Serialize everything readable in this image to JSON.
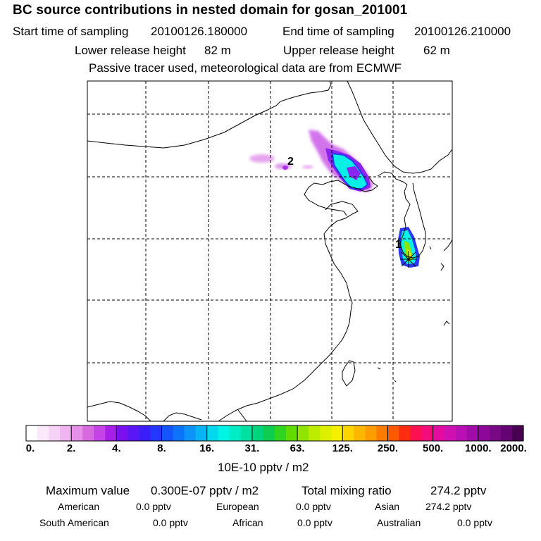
{
  "title": "BC  source contributions in nested domain for gosan_201001",
  "header": {
    "start_label": "Start time of sampling",
    "start_value": "20100126.180000",
    "end_label": "End time of sampling",
    "end_value": "20100126.210000",
    "lower_label": "Lower release height",
    "lower_value": "82 m",
    "upper_label": "Upper release height",
    "upper_value": "62 m",
    "info": "Passive tracer used, meteorological data are from ECMWF"
  },
  "map": {
    "markers": [
      {
        "label": "1"
      },
      {
        "label": "2"
      }
    ]
  },
  "colorbar": {
    "tick_labels": [
      "0.",
      "2.",
      "4.",
      "8.",
      "16.",
      "31.",
      "63.",
      "125.",
      "250.",
      "500.",
      "1000.",
      "2000."
    ],
    "colors": [
      "#ffffff",
      "#fbe9fb",
      "#f6d2f6",
      "#f0b5f0",
      "#e48fe8",
      "#d86ae0",
      "#c443e6",
      "#a61fe6",
      "#7a10ee",
      "#5a16f4",
      "#3a1ef8",
      "#2438fb",
      "#1454fb",
      "#0c74fb",
      "#0c94f8",
      "#08b4f4",
      "#04d8ec",
      "#00f4e4",
      "#00ecc4",
      "#00e0a0",
      "#00d47c",
      "#10cc50",
      "#30d420",
      "#60dc00",
      "#90e400",
      "#bcec00",
      "#dcf000",
      "#f4f000",
      "#fcd400",
      "#fcb800",
      "#fc9c00",
      "#fc7c00",
      "#fc5800",
      "#fc2c10",
      "#fc1050",
      "#f40c7c",
      "#e40ca0",
      "#d010b0",
      "#b810b4",
      "#a00ca8",
      "#8c0898",
      "#780884",
      "#640474",
      "#480050"
    ],
    "unit": "10E-10 pptv / m2"
  },
  "summary": {
    "max_label": "Maximum value",
    "max_value": "0.300E-07 pptv / m2",
    "total_label": "Total mixing ratio",
    "total_value": "274.2 pptv",
    "regions": [
      {
        "name": "American",
        "value": "0.0 pptv"
      },
      {
        "name": "European",
        "value": "0.0 pptv"
      },
      {
        "name": "Asian",
        "value": "274.2 pptv"
      },
      {
        "name": "South American",
        "value": "0.0 pptv"
      },
      {
        "name": "African",
        "value": "0.0 pptv"
      },
      {
        "name": "Australian",
        "value": "0.0 pptv"
      }
    ]
  }
}
